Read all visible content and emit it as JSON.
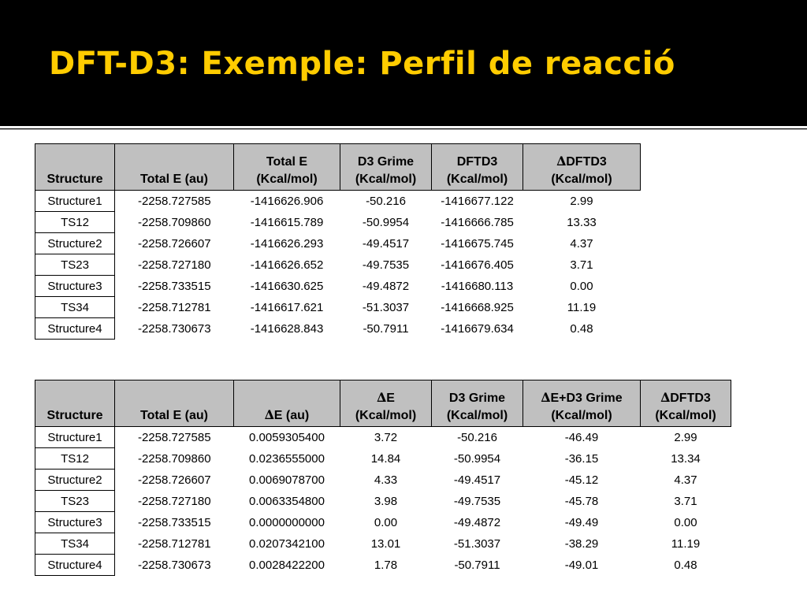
{
  "slide": {
    "title": "DFT-D3: Exemple: Perfil de reacció"
  },
  "table1": {
    "headers": [
      {
        "line1": "",
        "line2": "Structure"
      },
      {
        "line1": "",
        "line2": "Total E (au)"
      },
      {
        "line1": "Total E",
        "line2": "(Kcal/mol)"
      },
      {
        "line1": "D3 Grime",
        "line2": "(Kcal/mol)"
      },
      {
        "line1": "DFTD3",
        "line2": "(Kcal/mol)"
      },
      {
        "line1": "DFTD3",
        "line2": "(Kcal/mol)",
        "delta": "∆"
      }
    ],
    "rows": [
      [
        "Structure1",
        "-2258.727585",
        "-1416626.906",
        "-50.216",
        "-1416677.122",
        "2.99"
      ],
      [
        "TS12",
        "-2258.709860",
        "-1416615.789",
        "-50.9954",
        "-1416666.785",
        "13.33"
      ],
      [
        "Structure2",
        "-2258.726607",
        "-1416626.293",
        "-49.4517",
        "-1416675.745",
        "4.37"
      ],
      [
        "TS23",
        "-2258.727180",
        "-1416626.652",
        "-49.7535",
        "-1416676.405",
        "3.71"
      ],
      [
        "Structure3",
        "-2258.733515",
        "-1416630.625",
        "-49.4872",
        "-1416680.113",
        "0.00"
      ],
      [
        "TS34",
        "-2258.712781",
        "-1416617.621",
        "-51.3037",
        "-1416668.925",
        "11.19"
      ],
      [
        "Structure4",
        "-2258.730673",
        "-1416628.843",
        "-50.7911",
        "-1416679.634",
        "0.48"
      ]
    ]
  },
  "table2": {
    "headers": [
      {
        "line1": "",
        "line2": "Structure"
      },
      {
        "line1": "",
        "line2": "Total E (au)"
      },
      {
        "line1": "",
        "line2": "E (au)",
        "delta2": "∆"
      },
      {
        "line1": "E",
        "line2": "(Kcal/mol)",
        "delta": "∆"
      },
      {
        "line1": "D3 Grime",
        "line2": "(Kcal/mol)"
      },
      {
        "line1": "E+D3 Grime",
        "line2": "(Kcal/mol)",
        "delta": "∆"
      },
      {
        "line1": "DFTD3",
        "line2": "(Kcal/mol)",
        "delta": "∆"
      }
    ],
    "rows": [
      [
        "Structure1",
        "-2258.727585",
        "0.0059305400",
        "3.72",
        "-50.216",
        "-46.49",
        "2.99"
      ],
      [
        "TS12",
        "-2258.709860",
        "0.0236555000",
        "14.84",
        "-50.9954",
        "-36.15",
        "13.34"
      ],
      [
        "Structure2",
        "-2258.726607",
        "0.0069078700",
        "4.33",
        "-49.4517",
        "-45.12",
        "4.37"
      ],
      [
        "TS23",
        "-2258.727180",
        "0.0063354800",
        "3.98",
        "-49.7535",
        "-45.78",
        "3.71"
      ],
      [
        "Structure3",
        "-2258.733515",
        "0.0000000000",
        "0.00",
        "-49.4872",
        "-49.49",
        "0.00"
      ],
      [
        "TS34",
        "-2258.712781",
        "0.0207342100",
        "13.01",
        "-51.3037",
        "-38.29",
        "11.19"
      ],
      [
        "Structure4",
        "-2258.730673",
        "0.0028422200",
        "1.78",
        "-50.7911",
        "-49.01",
        "0.48"
      ]
    ]
  }
}
